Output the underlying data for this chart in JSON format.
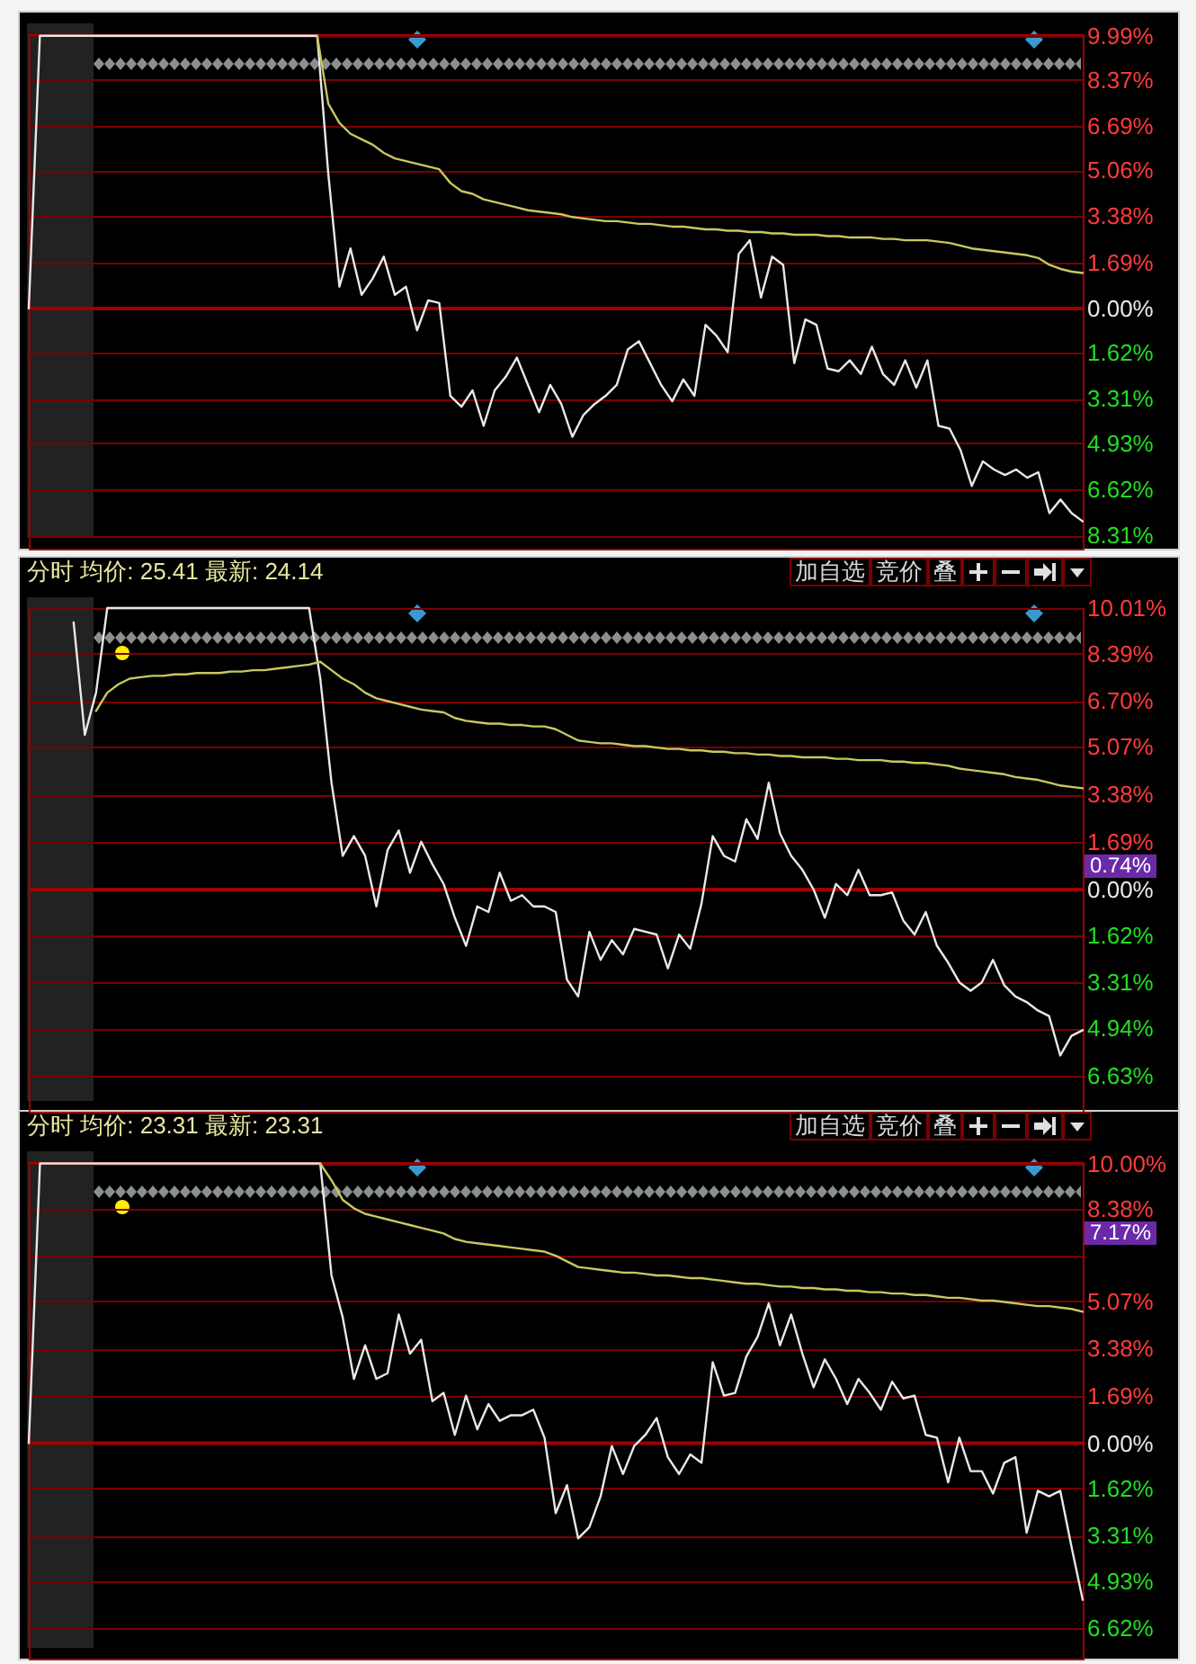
{
  "chart_data": [
    {
      "type": "line",
      "tick_labels": "y",
      "grid": "y",
      "ylim": [
        -8.8,
        10.05
      ],
      "yticks": [
        {
          "value": 9.99,
          "label": "9.99%"
        },
        {
          "value": 8.37,
          "label": "8.37%"
        },
        {
          "value": 6.69,
          "label": "6.69%"
        },
        {
          "value": 5.06,
          "label": "5.06%"
        },
        {
          "value": 3.38,
          "label": "3.38%"
        },
        {
          "value": 1.69,
          "label": "1.69%"
        },
        {
          "value": 0,
          "label": "0.00%"
        },
        {
          "value": -1.62,
          "label": "1.62%"
        },
        {
          "value": -3.31,
          "label": "3.31%"
        },
        {
          "value": -4.93,
          "label": "4.93%"
        },
        {
          "value": -6.62,
          "label": "6.62%"
        },
        {
          "value": -8.31,
          "label": "8.31%"
        }
      ],
      "ref_lines": [
        {
          "axis": "y",
          "value": 0,
          "color": "#a00000"
        }
      ],
      "categories": [
        null,
        null,
        null,
        null,
        null,
        null,
        null,
        null,
        null,
        null,
        null,
        null,
        null,
        null,
        null,
        null,
        null,
        null,
        null,
        null,
        null,
        null,
        null,
        null,
        null,
        null,
        null,
        null,
        null,
        null,
        null,
        null,
        null,
        null,
        null,
        null,
        null,
        null,
        null,
        null,
        null,
        null,
        null,
        null,
        null,
        null,
        null,
        null,
        null,
        null,
        null,
        null,
        null,
        null,
        null,
        null,
        null,
        null,
        null,
        null,
        null,
        null,
        null,
        null,
        null,
        null,
        null,
        null,
        null,
        null,
        null,
        null,
        null,
        null,
        null,
        null,
        null,
        null,
        null,
        null,
        null,
        null,
        null,
        null,
        null,
        null,
        null,
        null,
        null,
        null,
        null,
        null,
        null,
        null,
        null,
        null
      ],
      "series": [
        {
          "color": "#e8e8e8",
          "values": [
            0,
            9.99,
            9.99,
            9.99,
            9.99,
            9.99,
            9.99,
            9.99,
            9.99,
            9.99,
            9.99,
            9.99,
            9.99,
            9.99,
            9.99,
            9.99,
            9.99,
            9.99,
            9.99,
            9.99,
            9.99,
            9.99,
            9.99,
            9.99,
            9.99,
            9.99,
            9.99,
            4.93,
            0.8,
            2.2,
            0.5,
            1.1,
            1.9,
            0.5,
            0.8,
            -0.8,
            0.3,
            0.2,
            -3.2,
            -3.6,
            -3.0,
            -4.3,
            -3.0,
            -2.5,
            -1.8,
            -2.8,
            -3.8,
            -2.8,
            -3.5,
            -4.7,
            -3.9,
            -3.5,
            -3.2,
            -2.8,
            -1.5,
            -1.2,
            -2.0,
            -2.8,
            -3.4,
            -2.6,
            -3.2,
            -0.6,
            -1.0,
            -1.6,
            2.0,
            2.5,
            0.4,
            1.9,
            1.6,
            -2.0,
            -0.4,
            -0.6,
            -2.2,
            -2.3,
            -1.9,
            -2.4,
            -1.4,
            -2.4,
            -2.8,
            -1.9,
            -2.9,
            -1.9,
            -4.3,
            -4.4,
            -5.2,
            -6.5,
            -5.6,
            -5.9,
            -6.1,
            -5.9,
            -6.2,
            -6.0,
            -7.5,
            -7.0,
            -7.5,
            -7.8
          ]
        },
        {
          "color": "#c8c860",
          "values": [
            null,
            null,
            null,
            null,
            null,
            null,
            null,
            null,
            null,
            null,
            null,
            null,
            null,
            null,
            null,
            null,
            null,
            null,
            null,
            null,
            null,
            null,
            null,
            null,
            null,
            null,
            9.99,
            7.5,
            6.8,
            6.4,
            6.2,
            6.0,
            5.7,
            5.5,
            5.4,
            5.3,
            5.2,
            5.1,
            4.6,
            4.3,
            4.2,
            4.0,
            3.9,
            3.8,
            3.7,
            3.6,
            3.55,
            3.5,
            3.45,
            3.35,
            3.3,
            3.25,
            3.2,
            3.2,
            3.15,
            3.1,
            3.1,
            3.05,
            3.0,
            3.0,
            2.95,
            2.9,
            2.9,
            2.85,
            2.85,
            2.8,
            2.8,
            2.75,
            2.75,
            2.7,
            2.7,
            2.7,
            2.65,
            2.65,
            2.6,
            2.6,
            2.6,
            2.55,
            2.55,
            2.5,
            2.5,
            2.5,
            2.45,
            2.4,
            2.3,
            2.2,
            2.15,
            2.1,
            2.05,
            2.0,
            1.95,
            1.85,
            1.6,
            1.45,
            1.35,
            1.3
          ]
        }
      ]
    },
    {
      "type": "line",
      "title": "分时 均价: 25.41 最新: 24.14",
      "tick_labels": "y",
      "grid": "y",
      "ylim": [
        -7.9,
        10.01
      ],
      "yticks": [
        {
          "value": 10.01,
          "label": "10.01%"
        },
        {
          "value": 8.39,
          "label": "8.39%"
        },
        {
          "value": 6.7,
          "label": "6.70%"
        },
        {
          "value": 5.07,
          "label": "5.07%"
        },
        {
          "value": 3.38,
          "label": "3.38%"
        },
        {
          "value": 1.69,
          "label": "1.69%"
        },
        {
          "value": 0,
          "label": "0.00%"
        },
        {
          "value": -1.62,
          "label": "1.62%"
        },
        {
          "value": -3.31,
          "label": "3.31%"
        },
        {
          "value": -4.94,
          "label": "4.94%"
        },
        {
          "value": -6.63,
          "label": "6.63%"
        }
      ],
      "ref_lines": [
        {
          "axis": "y",
          "value": 0,
          "color": "#a00000"
        }
      ],
      "annotations": [
        "加自选",
        "竞价",
        "叠",
        "0.74%"
      ],
      "categories": [
        null,
        null,
        null,
        null,
        null,
        null,
        null,
        null,
        null,
        null,
        null,
        null,
        null,
        null,
        null,
        null,
        null,
        null,
        null,
        null,
        null,
        null,
        null,
        null,
        null,
        null,
        null,
        null,
        null,
        null,
        null,
        null,
        null,
        null,
        null,
        null,
        null,
        null,
        null,
        null,
        null,
        null,
        null,
        null,
        null,
        null,
        null,
        null,
        null,
        null,
        null,
        null,
        null,
        null,
        null,
        null,
        null,
        null,
        null,
        null,
        null,
        null,
        null,
        null,
        null,
        null,
        null,
        null,
        null,
        null,
        null,
        null,
        null,
        null,
        null,
        null,
        null,
        null,
        null,
        null,
        null,
        null,
        null,
        null,
        null,
        null,
        null,
        null,
        null,
        null,
        null,
        null,
        null,
        null,
        null
      ],
      "series": [
        {
          "color": "#e8e8e8",
          "values": [
            null,
            null,
            null,
            null,
            9.5,
            5.5,
            7.0,
            10.01,
            10.01,
            10.01,
            10.01,
            10.01,
            10.01,
            10.01,
            10.01,
            10.01,
            10.01,
            10.01,
            10.01,
            10.01,
            10.01,
            10.01,
            10.01,
            10.01,
            10.01,
            10.01,
            7.5,
            3.8,
            1.2,
            1.9,
            1.2,
            -0.6,
            1.4,
            2.1,
            0.6,
            1.7,
            0.9,
            0.2,
            -1.0,
            -2.0,
            -0.6,
            -0.8,
            0.6,
            -0.4,
            -0.2,
            -0.6,
            -0.6,
            -0.8,
            -3.2,
            -3.8,
            -1.5,
            -2.5,
            -1.8,
            -2.3,
            -1.4,
            -1.5,
            -1.6,
            -2.8,
            -1.6,
            -2.1,
            -0.5,
            1.9,
            1.2,
            1.0,
            2.5,
            1.8,
            3.8,
            2.0,
            1.2,
            0.7,
            0.0,
            -1.0,
            0.2,
            -0.2,
            0.7,
            -0.2,
            -0.2,
            -0.1,
            -1.1,
            -1.6,
            -0.8,
            -2.0,
            -2.6,
            -3.3,
            -3.6,
            -3.3,
            -2.5,
            -3.4,
            -3.8,
            -4.0,
            -4.3,
            -4.5,
            -5.9,
            -5.2,
            -5.0
          ]
        },
        {
          "color": "#c8c860",
          "values": [
            null,
            null,
            null,
            null,
            null,
            null,
            6.35,
            7.0,
            7.3,
            7.5,
            7.55,
            7.6,
            7.6,
            7.65,
            7.65,
            7.7,
            7.7,
            7.7,
            7.75,
            7.75,
            7.8,
            7.8,
            7.85,
            7.9,
            7.95,
            8.0,
            8.1,
            7.8,
            7.5,
            7.3,
            7.0,
            6.8,
            6.7,
            6.6,
            6.5,
            6.4,
            6.35,
            6.3,
            6.1,
            6.0,
            5.95,
            5.9,
            5.9,
            5.85,
            5.85,
            5.8,
            5.8,
            5.7,
            5.5,
            5.3,
            5.25,
            5.2,
            5.2,
            5.15,
            5.1,
            5.1,
            5.05,
            5.0,
            5.0,
            4.95,
            4.95,
            4.9,
            4.9,
            4.85,
            4.85,
            4.8,
            4.8,
            4.75,
            4.75,
            4.7,
            4.7,
            4.7,
            4.65,
            4.65,
            4.6,
            4.6,
            4.6,
            4.55,
            4.55,
            4.5,
            4.5,
            4.45,
            4.4,
            4.3,
            4.25,
            4.2,
            4.15,
            4.1,
            4.0,
            3.95,
            3.9,
            3.8,
            3.7,
            3.65,
            3.6
          ]
        }
      ]
    },
    {
      "type": "line",
      "title": "分时 均价: 23.31 最新: 23.31",
      "tick_labels": "y",
      "grid": "y",
      "ylim": [
        -7.7,
        10.05
      ],
      "yticks": [
        {
          "value": 10.0,
          "label": "10.00%"
        },
        {
          "value": 8.38,
          "label": "8.38%"
        },
        {
          "value": 6.69,
          "label": null
        },
        {
          "value": 5.07,
          "label": "5.07%"
        },
        {
          "value": 3.38,
          "label": "3.38%"
        },
        {
          "value": 1.69,
          "label": "1.69%"
        },
        {
          "value": 0,
          "label": "0.00%"
        },
        {
          "value": -1.62,
          "label": "1.62%"
        },
        {
          "value": -3.31,
          "label": "3.31%"
        },
        {
          "value": -4.93,
          "label": "4.93%"
        },
        {
          "value": -6.62,
          "label": "6.62%"
        }
      ],
      "ref_lines": [
        {
          "axis": "y",
          "value": 0,
          "color": "#a00000"
        }
      ],
      "annotations": [
        "加自选",
        "竞价",
        "叠",
        "7.17%"
      ],
      "categories": [
        null,
        null,
        null,
        null,
        null,
        null,
        null,
        null,
        null,
        null,
        null,
        null,
        null,
        null,
        null,
        null,
        null,
        null,
        null,
        null,
        null,
        null,
        null,
        null,
        null,
        null,
        null,
        null,
        null,
        null,
        null,
        null,
        null,
        null,
        null,
        null,
        null,
        null,
        null,
        null,
        null,
        null,
        null,
        null,
        null,
        null,
        null,
        null,
        null,
        null,
        null,
        null,
        null,
        null,
        null,
        null,
        null,
        null,
        null,
        null,
        null,
        null,
        null,
        null,
        null,
        null,
        null,
        null,
        null,
        null,
        null,
        null,
        null,
        null,
        null,
        null,
        null,
        null,
        null,
        null,
        null,
        null,
        null,
        null,
        null,
        null,
        null,
        null,
        null,
        null,
        null,
        null,
        null,
        null,
        null
      ],
      "series": [
        {
          "color": "#e8e8e8",
          "values": [
            0,
            10.0,
            10.0,
            10.0,
            10.0,
            10.0,
            10.0,
            10.0,
            10.0,
            10.0,
            10.0,
            10.0,
            10.0,
            10.0,
            10.0,
            10.0,
            10.0,
            10.0,
            10.0,
            10.0,
            10.0,
            10.0,
            10.0,
            10.0,
            10.0,
            10.0,
            10.0,
            6.0,
            4.5,
            2.3,
            3.5,
            2.3,
            2.5,
            4.6,
            3.2,
            3.7,
            1.5,
            1.8,
            0.3,
            1.7,
            0.5,
            1.4,
            0.8,
            1.0,
            1.0,
            1.2,
            0.2,
            -2.5,
            -1.5,
            -3.4,
            -3.0,
            -1.9,
            -0.1,
            -1.1,
            -0.1,
            0.3,
            0.9,
            -0.5,
            -1.1,
            -0.4,
            -0.7,
            2.9,
            1.7,
            1.8,
            3.1,
            3.8,
            5.0,
            3.5,
            4.6,
            3.2,
            2.0,
            3.0,
            2.3,
            1.4,
            2.3,
            1.8,
            1.2,
            2.2,
            1.6,
            1.7,
            0.3,
            0.2,
            -1.4,
            0.2,
            -1.0,
            -1.0,
            -1.8,
            -0.7,
            -0.5,
            -3.2,
            -1.7,
            -1.9,
            -1.7,
            -3.7,
            -5.6
          ]
        },
        {
          "color": "#c8c860",
          "values": [
            null,
            null,
            null,
            null,
            null,
            null,
            null,
            null,
            null,
            null,
            null,
            null,
            null,
            null,
            null,
            null,
            null,
            null,
            null,
            null,
            null,
            null,
            null,
            null,
            null,
            null,
            10.0,
            9.4,
            8.7,
            8.4,
            8.2,
            8.1,
            8.0,
            7.9,
            7.8,
            7.7,
            7.6,
            7.5,
            7.3,
            7.2,
            7.15,
            7.1,
            7.05,
            7.0,
            6.95,
            6.9,
            6.85,
            6.7,
            6.5,
            6.3,
            6.25,
            6.2,
            6.15,
            6.1,
            6.1,
            6.05,
            6.0,
            6.0,
            5.95,
            5.9,
            5.9,
            5.85,
            5.8,
            5.75,
            5.7,
            5.7,
            5.65,
            5.6,
            5.6,
            5.55,
            5.55,
            5.5,
            5.5,
            5.45,
            5.45,
            5.4,
            5.4,
            5.35,
            5.35,
            5.3,
            5.3,
            5.25,
            5.2,
            5.2,
            5.15,
            5.1,
            5.1,
            5.05,
            5.0,
            4.95,
            4.9,
            4.9,
            4.85,
            4.8,
            4.7
          ]
        }
      ]
    }
  ]
}
